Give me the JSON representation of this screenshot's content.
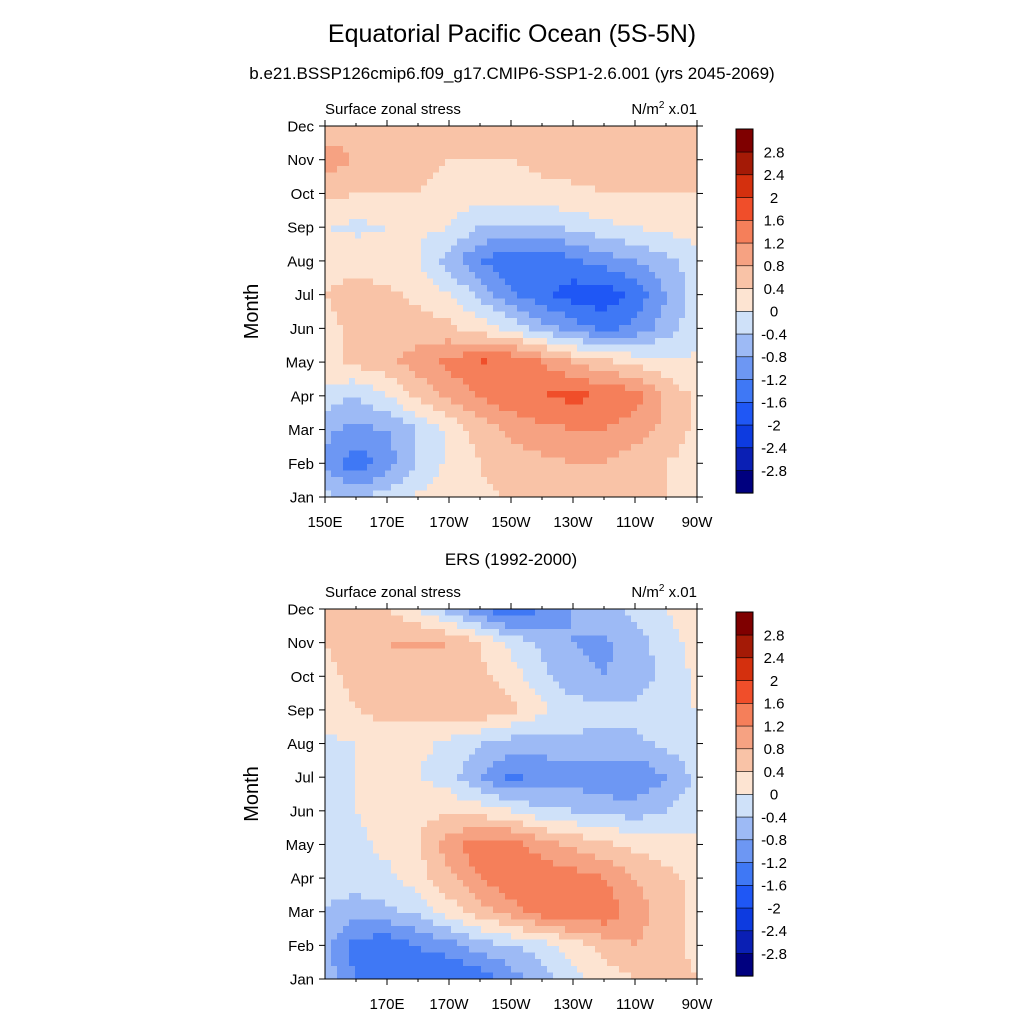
{
  "figure": {
    "title": "Equatorial Pacific Ocean (5S-5N)",
    "subtitle": "b.e21.BSSP126cmip6.f09_g17.CMIP6-SSP1-2.6.001 (yrs 2045-2069)"
  },
  "colorbar": {
    "levels": [
      -2.8,
      -2.4,
      -2,
      -1.6,
      -1.2,
      -0.8,
      -0.4,
      0,
      0.4,
      0.8,
      1.2,
      1.6,
      2,
      2.4,
      2.8
    ],
    "labels": [
      "-2.8",
      "-2.4",
      "-2",
      "-1.6",
      "-1.2",
      "-0.8",
      "-0.4",
      "0",
      "0.4",
      "0.8",
      "1.2",
      "1.6",
      "2",
      "2.4",
      "2.8"
    ],
    "colors": [
      "#00007f",
      "#0a1fb4",
      "#0d3be0",
      "#1f57f5",
      "#3f78f5",
      "#6d97f3",
      "#9dbaf5",
      "#cfe1f9",
      "#fde4d2",
      "#f9c3a7",
      "#f6a282",
      "#f57f5a",
      "#f04e2a",
      "#d4300e",
      "#a41a06",
      "#7f0000"
    ]
  },
  "chart_data": [
    {
      "type": "heatmap",
      "title": "",
      "left_string": "Surface zonal stress",
      "right_string_base": "N/m",
      "right_string_sup": "2",
      "right_string_tail": " x.01",
      "bottom_title": "",
      "xlabel": "",
      "ylabel": "Month",
      "x_domain": [
        150,
        270
      ],
      "x_ticks": [
        150,
        170,
        190,
        210,
        230,
        250,
        270
      ],
      "x_tick_labels": [
        "150E",
        "170E",
        "170W",
        "150W",
        "130W",
        "110W",
        "90W"
      ],
      "y_tick_labels": [
        "Jan",
        "Feb",
        "Mar",
        "Apr",
        "May",
        "Jun",
        "Jul",
        "Aug",
        "Sep",
        "Oct",
        "Nov",
        "Dec"
      ],
      "lon_grid": [
        150,
        160,
        170,
        180,
        190,
        200,
        210,
        220,
        230,
        240,
        250,
        260,
        270
      ],
      "values": [
        [
          -0.3,
          -0.5,
          -0.2,
          0.1,
          0.2,
          0.35,
          0.4,
          0.5,
          0.6,
          0.6,
          0.5,
          0.4,
          0.2
        ],
        [
          -0.9,
          -1.5,
          -1.0,
          -0.4,
          0.1,
          0.4,
          0.6,
          0.7,
          0.8,
          0.8,
          0.6,
          0.4,
          0.2
        ],
        [
          -0.7,
          -0.9,
          -0.8,
          -0.4,
          0.1,
          0.6,
          0.9,
          1.1,
          1.2,
          1.2,
          1.0,
          0.7,
          0.3
        ],
        [
          -0.2,
          -0.4,
          0.0,
          0.5,
          0.9,
          1.2,
          1.5,
          1.6,
          1.7,
          1.6,
          1.4,
          0.7,
          0.3
        ],
        [
          0.3,
          0.5,
          0.7,
          1.0,
          1.3,
          1.65,
          1.6,
          1.2,
          0.8,
          0.5,
          0.3,
          0.1,
          0.05
        ],
        [
          0.3,
          0.5,
          0.6,
          0.6,
          0.5,
          0.2,
          -0.1,
          -0.6,
          -1.0,
          -1.3,
          -1.1,
          -0.6,
          -0.1
        ],
        [
          0.4,
          0.5,
          0.5,
          0.3,
          0.0,
          -0.5,
          -1.1,
          -1.5,
          -1.8,
          -1.9,
          -1.5,
          -0.8,
          -0.2
        ],
        [
          0.3,
          0.3,
          0.2,
          0.0,
          -0.6,
          -1.2,
          -1.5,
          -1.5,
          -1.3,
          -1.0,
          -0.8,
          -0.5,
          -0.2
        ],
        [
          0.0,
          -0.1,
          0.0,
          0.1,
          0.0,
          -0.4,
          -0.5,
          -0.5,
          -0.3,
          -0.1,
          0.0,
          0.1,
          0.2
        ],
        [
          0.5,
          0.4,
          0.4,
          0.4,
          0.3,
          0.2,
          0.2,
          0.3,
          0.35,
          0.4,
          0.4,
          0.4,
          0.4
        ],
        [
          1.0,
          0.8,
          0.6,
          0.5,
          0.4,
          0.4,
          0.4,
          0.5,
          0.5,
          0.5,
          0.5,
          0.5,
          0.5
        ],
        [
          0.6,
          0.6,
          0.5,
          0.4,
          0.4,
          0.4,
          0.4,
          0.5,
          0.5,
          0.5,
          0.5,
          0.5,
          0.5
        ]
      ]
    },
    {
      "type": "heatmap",
      "title": "ERS (1992-2000)",
      "left_string": "Surface zonal stress",
      "right_string_base": "N/m",
      "right_string_sup": "2",
      "right_string_tail": " x.01",
      "xlabel": "",
      "ylabel": "Month",
      "x_domain": [
        150,
        270
      ],
      "x_ticks": [
        170,
        190,
        210,
        230,
        250,
        270
      ],
      "x_tick_labels": [
        "170E",
        "170W",
        "150W",
        "130W",
        "110W",
        "90W"
      ],
      "y_tick_labels": [
        "Jan",
        "Feb",
        "Mar",
        "Apr",
        "May",
        "Jun",
        "Jul",
        "Aug",
        "Sep",
        "Oct",
        "Nov",
        "Dec"
      ],
      "lon_grid": [
        150,
        160,
        170,
        180,
        190,
        200,
        210,
        220,
        230,
        240,
        250,
        260,
        270
      ],
      "values": [
        [
          -0.5,
          -1.2,
          -1.5,
          -1.4,
          -1.6,
          -1.5,
          -1.0,
          -0.6,
          -0.2,
          0.2,
          0.4,
          0.6,
          0.4
        ],
        [
          -0.7,
          -1.4,
          -1.5,
          -1.2,
          -1.0,
          -0.6,
          -0.4,
          -0.2,
          0.2,
          0.6,
          0.8,
          0.5,
          0.3
        ],
        [
          -0.4,
          -0.6,
          -0.5,
          -0.3,
          0.2,
          0.6,
          1.0,
          1.4,
          1.6,
          1.5,
          1.0,
          0.6,
          0.3
        ],
        [
          -0.3,
          -0.2,
          -0.1,
          0.2,
          0.7,
          1.2,
          1.6,
          1.5,
          1.4,
          1.2,
          0.8,
          0.5,
          0.3
        ],
        [
          -0.2,
          -0.1,
          0.1,
          0.4,
          1.0,
          1.5,
          1.4,
          1.0,
          0.7,
          0.5,
          0.3,
          0.2,
          0.1
        ],
        [
          -0.2,
          0.0,
          0.2,
          0.3,
          0.3,
          0.2,
          0.0,
          -0.3,
          -0.4,
          -0.5,
          -0.6,
          -0.4,
          -0.2
        ],
        [
          -0.2,
          0.0,
          0.1,
          0.0,
          -0.2,
          -0.8,
          -1.3,
          -1.1,
          -1.0,
          -1.2,
          -1.2,
          -0.8,
          -0.3
        ],
        [
          -0.1,
          0.0,
          0.1,
          0.1,
          -0.1,
          -0.4,
          -0.6,
          -0.6,
          -0.5,
          -0.5,
          -0.5,
          -0.3,
          -0.1
        ],
        [
          0.2,
          0.4,
          0.6,
          0.5,
          0.6,
          0.7,
          0.5,
          0.1,
          -0.2,
          -0.3,
          -0.3,
          -0.1,
          0.0
        ],
        [
          0.3,
          0.5,
          0.6,
          0.5,
          0.6,
          0.5,
          0.2,
          -0.3,
          -0.7,
          -0.8,
          -0.6,
          -0.3,
          0.1
        ],
        [
          0.4,
          0.6,
          0.8,
          0.9,
          0.8,
          0.4,
          -0.1,
          -0.5,
          -0.8,
          -0.9,
          -0.6,
          -0.2,
          0.2
        ],
        [
          0.5,
          0.5,
          0.4,
          0.0,
          -0.6,
          -1.2,
          -1.6,
          -1.2,
          -0.8,
          -0.5,
          -0.3,
          0.0,
          0.3
        ]
      ]
    }
  ]
}
